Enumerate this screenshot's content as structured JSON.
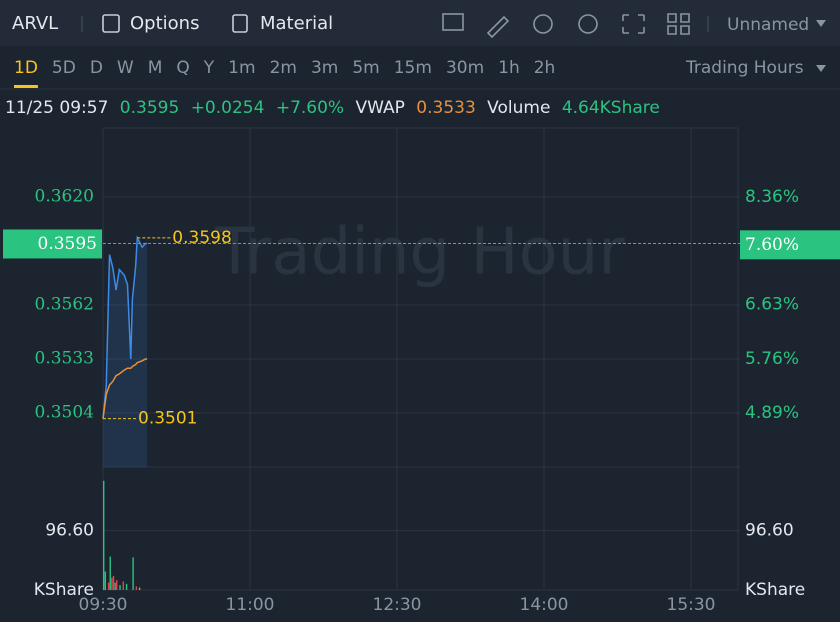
{
  "toolbar": {
    "symbol": "ARVL",
    "options": "Options",
    "material": "Material",
    "layout": "Unnamed"
  },
  "timeframes": {
    "items": [
      "1D",
      "5D",
      "D",
      "W",
      "M",
      "Q",
      "Y",
      "1m",
      "2m",
      "3m",
      "5m",
      "15m",
      "30m",
      "1h",
      "2h"
    ],
    "selected": "1D",
    "session": "Trading Hours"
  },
  "quote": {
    "time": "11/25 09:57",
    "price": "0.3595",
    "change": "+0.0254",
    "change_pct": "+7.60%",
    "vwap_label": "VWAP",
    "vwap": "0.3533",
    "volume_label": "Volume",
    "volume": "4.64KShare"
  },
  "chart_data": {
    "type": "line",
    "watermark": "Trading Hour",
    "x": [
      "09:30",
      "09:32",
      "09:34",
      "09:36",
      "09:38",
      "09:40",
      "09:43",
      "09:45",
      "09:47",
      "09:48",
      "09:50",
      "09:51",
      "09:54",
      "09:56",
      "09:57"
    ],
    "series": [
      {
        "name": "Price",
        "color": "#3d8be8",
        "values": [
          0.3501,
          0.3519,
          0.3589,
          0.3582,
          0.357,
          0.3581,
          0.3578,
          0.3573,
          0.3533,
          0.3565,
          0.3583,
          0.3598,
          0.3593,
          0.3595,
          0.3595
        ]
      },
      {
        "name": "VWAP",
        "color": "#e8913a",
        "values": [
          0.3501,
          0.3514,
          0.3519,
          0.3521,
          0.3524,
          0.3525,
          0.3527,
          0.3528,
          0.3528,
          0.3529,
          0.353,
          0.3531,
          0.3532,
          0.3533,
          0.3533
        ]
      }
    ],
    "xlim": [
      "09:30",
      "16:00"
    ],
    "xticks": [
      "09:30",
      "11:00",
      "12:30",
      "14:00",
      "15:30"
    ],
    "ylim": [
      0.3475,
      0.3657
    ],
    "yticks": [
      {
        "value": 0.362,
        "label": "0.3620"
      },
      {
        "value": 0.3562,
        "label": "0.3562"
      },
      0.3533,
      0.3504
    ],
    "y2lim": [
      4.02,
      9.47
    ],
    "y2ticks": [
      {
        "value": 8.36,
        "label": "8.36%"
      },
      {
        "value": 6.63,
        "label": "6.63%"
      },
      {
        "value": 5.76,
        "label": "5.76%"
      },
      {
        "value": 4.89,
        "label": "4.89%"
      }
    ],
    "last": {
      "value": 0.3595,
      "label": "0.3595"
    },
    "last_pct": {
      "value": 7.6,
      "label": "7.60%"
    },
    "high": {
      "x": "09:51",
      "value": 0.3598,
      "label": "0.3598"
    },
    "low": {
      "x": "09:30",
      "value": 0.3501,
      "label": "0.3501"
    },
    "volume": {
      "unit": "KShare",
      "x": [
        "09:30",
        "09:31",
        "09:33",
        "09:34",
        "09:35",
        "09:36",
        "09:37",
        "09:38",
        "09:40",
        "09:42",
        "09:44",
        "09:48",
        "09:50",
        "09:52"
      ],
      "values": [
        177.6,
        30,
        12,
        54.5,
        20,
        23,
        12,
        16,
        8,
        14,
        10,
        53,
        6,
        4
      ],
      "colors": [
        "#2ac37f",
        "#2ac37f",
        "#e8434b",
        "#2ac37f",
        "#e8434b",
        "#e8434b",
        "#2ac37f",
        "#e8434b",
        "#2ac37f",
        "#e8434b",
        "#2ac37f",
        "#2ac37f",
        "#e8434b",
        "#e8913a"
      ],
      "ylim": [
        0,
        200
      ],
      "yticks": [
        {
          "value": 96.6,
          "label": "96.60"
        }
      ]
    }
  }
}
